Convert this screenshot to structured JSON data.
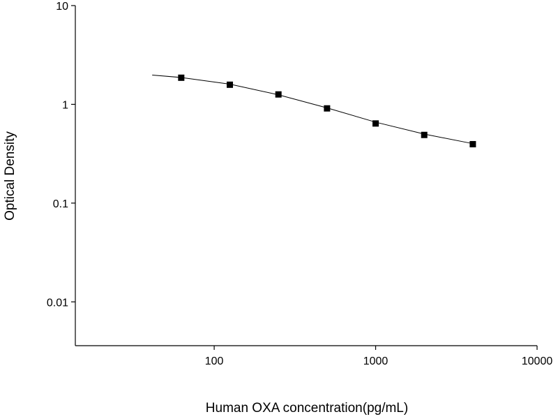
{
  "chart_data": {
    "type": "scatter",
    "x_label": "Human OXA concentration(pg/mL)",
    "y_label": "Optical Density",
    "xscale": "log",
    "yscale": "log",
    "xlim": [
      13.8,
      10000
    ],
    "ylim": [
      0.0036,
      10
    ],
    "xticks": [
      100,
      1000,
      10000
    ],
    "yticks": [
      0.01,
      0.1,
      1,
      10
    ],
    "grid": false,
    "series": [
      {
        "color": "#000000",
        "marker": "square",
        "x": [
          62.5,
          125,
          250,
          500,
          1000,
          2000,
          4000
        ],
        "values": [
          1.86,
          1.58,
          1.26,
          0.91,
          0.64,
          0.49,
          0.395
        ]
      }
    ],
    "curve": {
      "color": "#000000",
      "x": [
        41.3,
        62.5,
        125,
        250,
        500,
        1000,
        2000,
        4000
      ],
      "values": [
        1.98,
        1.87,
        1.6,
        1.25,
        0.92,
        0.66,
        0.5,
        0.4
      ]
    }
  }
}
